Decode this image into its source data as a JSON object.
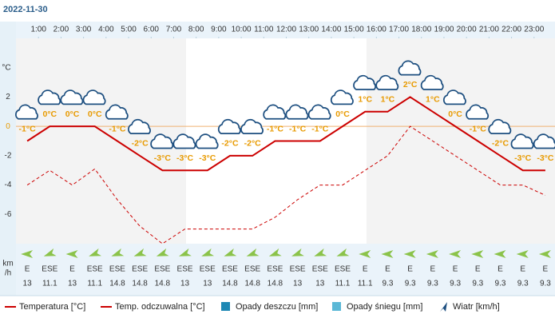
{
  "chart_data": {
    "type": "line",
    "title": "2022-11-30",
    "y_label": "°C",
    "xlim": [
      0,
      24
    ],
    "xticks": [
      {
        "value": 1,
        "label": "1:00"
      },
      {
        "value": 2,
        "label": "2:00"
      },
      {
        "value": 3,
        "label": "3:00"
      },
      {
        "value": 4,
        "label": "4:00"
      },
      {
        "value": 5,
        "label": "5:00"
      },
      {
        "value": 6,
        "label": "6:00"
      },
      {
        "value": 7,
        "label": "7:00"
      },
      {
        "value": 8,
        "label": "8:00"
      },
      {
        "value": 9,
        "label": "9:00"
      },
      {
        "value": 10,
        "label": "10:00"
      },
      {
        "value": 11,
        "label": "11:00"
      },
      {
        "value": 12,
        "label": "12:00"
      },
      {
        "value": 13,
        "label": "13:00"
      },
      {
        "value": 14,
        "label": "14:00"
      },
      {
        "value": 15,
        "label": "15:00"
      },
      {
        "value": 16,
        "label": "16:00"
      },
      {
        "value": 17,
        "label": "17:00"
      },
      {
        "value": 18,
        "label": "18:00"
      },
      {
        "value": 19,
        "label": "19:00"
      },
      {
        "value": 20,
        "label": "20:00"
      },
      {
        "value": 21,
        "label": "21:00"
      },
      {
        "value": 22,
        "label": "22:00"
      },
      {
        "value": 23,
        "label": "23:00"
      }
    ],
    "x": [
      0.5,
      1.5,
      2.5,
      3.5,
      4.5,
      5.5,
      6.5,
      7.5,
      8.5,
      9.5,
      10.5,
      11.5,
      12.5,
      13.5,
      14.5,
      15.5,
      16.5,
      17.5,
      18.5,
      19.5,
      20.5,
      21.5,
      22.5,
      23.5
    ],
    "ylim": [
      -8,
      6
    ],
    "yticks": [
      -6,
      -4,
      -2,
      0,
      2
    ],
    "series": [
      {
        "name": "Temperatura [°C]",
        "color": "#cc0000",
        "values": [
          -1,
          0,
          0,
          0,
          -1,
          -2,
          -3,
          -3,
          -3,
          -2,
          -2,
          -1,
          -1,
          -1,
          0,
          1,
          1,
          2,
          1,
          0,
          -1,
          -2,
          -3,
          -3
        ],
        "value_labels": [
          "-1°C",
          "0°C",
          "0°C",
          "0°C",
          "-1°C",
          "-2°C",
          "-3°C",
          "-3°C",
          "-3°C",
          "-2°C",
          "-2°C",
          "-1°C",
          "-1°C",
          "-1°C",
          "0°C",
          "1°C",
          "1°C",
          "2°C",
          "1°C",
          "0°C",
          "-1°C",
          "-2°C",
          "-3°C",
          "-3°C"
        ]
      },
      {
        "name": "Temp. odczuwalna [°C]",
        "color": "#cc0000",
        "dashed": true,
        "values": [
          -4,
          -3,
          -4,
          -2.9,
          -5,
          -6.8,
          -8,
          -7,
          -7,
          -7,
          -7,
          -6.2,
          -5,
          -4,
          -4,
          -3,
          -2,
          0,
          -1,
          -2,
          -3,
          -4,
          -4,
          -4.7
        ]
      },
      {
        "name": "Opady deszczu [mm]",
        "color": "#1e88b4"
      },
      {
        "name": "Opady śniegu [mm]",
        "color": "#5bb8d6"
      }
    ],
    "wind": {
      "name": "Wiatr [km/h]",
      "unit_label": [
        "km",
        "/h"
      ],
      "directions": [
        "E",
        "ESE",
        "E",
        "ESE",
        "ESE",
        "ESE",
        "ESE",
        "ESE",
        "ESE",
        "ESE",
        "ESE",
        "ESE",
        "ESE",
        "ESE",
        "ESE",
        "E",
        "E",
        "E",
        "E",
        "E",
        "E",
        "E",
        "E",
        "E"
      ],
      "speeds": [
        13,
        11.1,
        13,
        11.1,
        14.8,
        14.8,
        14.8,
        13,
        13,
        14.8,
        14.8,
        14.8,
        13,
        13,
        11.1,
        11.1,
        9.3,
        9.3,
        9.3,
        9.3,
        9.3,
        9.3,
        9.3,
        9.3
      ]
    }
  }
}
